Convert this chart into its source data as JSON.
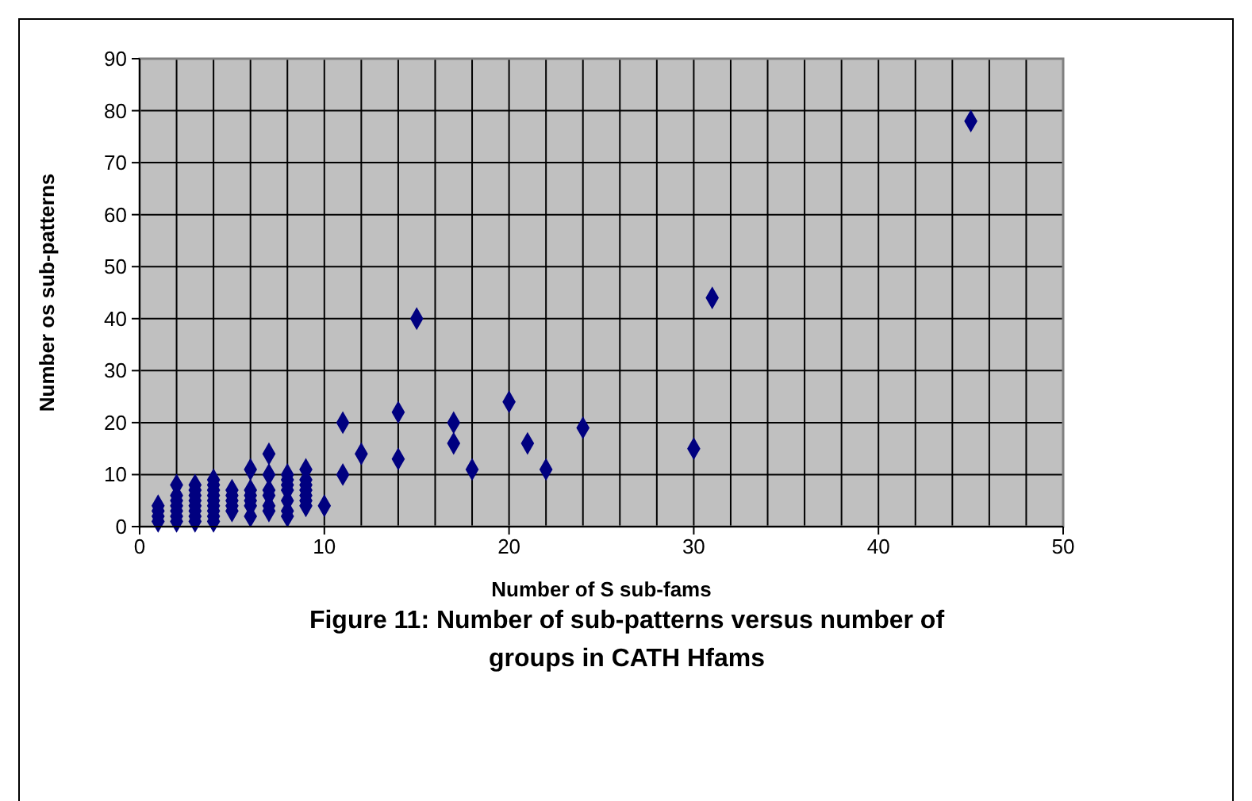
{
  "chart_data": {
    "type": "scatter",
    "title": "Figure 11: Number of sub-patterns versus number of groups in CATH Hfams",
    "xlabel": "Number of S sub-fams",
    "ylabel": "Number os sub-patterns",
    "series": [
      {
        "color": "#000080",
        "x": [
          1,
          1,
          1,
          1,
          2,
          2,
          2,
          2,
          2,
          2,
          2,
          3,
          3,
          3,
          3,
          3,
          3,
          3,
          3,
          4,
          4,
          4,
          4,
          4,
          4,
          4,
          4,
          4,
          5,
          5,
          5,
          5,
          5,
          6,
          6,
          6,
          6,
          6,
          6,
          7,
          7,
          7,
          7,
          7,
          7,
          8,
          8,
          8,
          8,
          8,
          8,
          8,
          9,
          9,
          9,
          9,
          9,
          9,
          9,
          10,
          11,
          11,
          12,
          14,
          14,
          15,
          17,
          17,
          18,
          20,
          21,
          22,
          24,
          30,
          31,
          45
        ],
        "values": [
          1,
          2,
          3,
          4,
          1,
          2,
          3,
          4,
          5,
          6,
          8,
          1,
          2,
          3,
          4,
          5,
          6,
          7,
          8,
          1,
          2,
          3,
          4,
          5,
          6,
          7,
          8,
          9,
          3,
          4,
          5,
          6,
          7,
          2,
          4,
          5,
          6,
          7,
          11,
          3,
          4,
          6,
          7,
          10,
          14,
          2,
          3,
          5,
          7,
          8,
          9,
          10,
          4,
          5,
          6,
          7,
          8,
          9,
          11,
          4,
          10,
          20,
          14,
          13,
          22,
          40,
          16,
          20,
          11,
          24,
          16,
          11,
          19,
          15,
          44,
          78
        ]
      }
    ],
    "xlim": [
      0,
      50
    ],
    "ylim": [
      0,
      90
    ],
    "xticks": [
      0,
      {
        "value": 2,
        "label": null
      },
      {
        "value": 4,
        "label": null
      },
      {
        "value": 6,
        "label": null
      },
      {
        "value": 8,
        "label": null
      },
      10,
      {
        "value": 12,
        "label": null
      },
      {
        "value": 14,
        "label": null
      },
      {
        "value": 16,
        "label": null
      },
      {
        "value": 18,
        "label": null
      },
      20,
      {
        "value": 22,
        "label": null
      },
      {
        "value": 24,
        "label": null
      },
      {
        "value": 26,
        "label": null
      },
      {
        "value": 28,
        "label": null
      },
      30,
      {
        "value": 32,
        "label": null
      },
      {
        "value": 34,
        "label": null
      },
      {
        "value": 36,
        "label": null
      },
      {
        "value": 38,
        "label": null
      },
      40,
      {
        "value": 42,
        "label": null
      },
      {
        "value": 44,
        "label": null
      },
      {
        "value": 46,
        "label": null
      },
      {
        "value": 48,
        "label": null
      },
      50
    ],
    "yticks": [
      0,
      10,
      20,
      30,
      40,
      50,
      60,
      70,
      80,
      90
    ],
    "grid": true,
    "marker": "diamond"
  }
}
